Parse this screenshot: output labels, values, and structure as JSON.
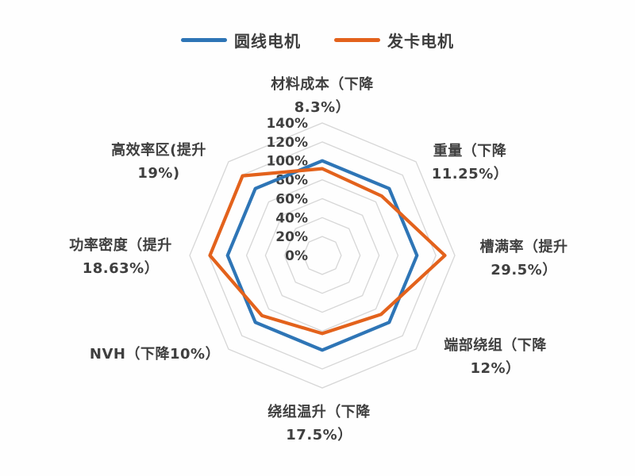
{
  "legend": {
    "items": [
      {
        "label": "圆线电机",
        "color": "#2E75B6"
      },
      {
        "label": "发卡电机",
        "color": "#E3621C"
      }
    ]
  },
  "chart_data": {
    "type": "radar",
    "categories": [
      "材料成本（下降 8.3%）",
      "重量（下降 11.25%）",
      "槽满率（提升 29.5%）",
      "端部绕组（下降 12%）",
      "绕组温升（下降 17.5%）",
      "NVH（下降10%）",
      "功率密度（提升 18.63%）",
      "高效率区(提升 19%)"
    ],
    "axis_label_lines": [
      [
        "材料成本（下降",
        "8.3%）"
      ],
      [
        "重量（下降",
        "11.25%）"
      ],
      [
        "槽满率（提升",
        "29.5%）"
      ],
      [
        "端部绕组（下降",
        "12%）"
      ],
      [
        "绕组温升（下降",
        "17.5%）"
      ],
      [
        "NVH（下降10%）"
      ],
      [
        "功率密度（提升",
        "18.63%）"
      ],
      [
        "高效率区(提升",
        "19%)"
      ]
    ],
    "series": [
      {
        "name": "圆线电机",
        "color": "#2E75B6",
        "values": [
          100,
          100,
          100,
          100,
          100,
          100,
          100,
          100
        ]
      },
      {
        "name": "发卡电机",
        "color": "#E3621C",
        "values": [
          91.7,
          88.75,
          129.5,
          88,
          82.5,
          90,
          118.63,
          119
        ]
      }
    ],
    "rlim": [
      0,
      140
    ],
    "tick_step": 20,
    "tick_labels": [
      "0%",
      "20%",
      "40%",
      "60%",
      "80%",
      "100%",
      "120%",
      "140%"
    ],
    "grid": "concentric-octagons",
    "grid_color": "#d6d6d6",
    "legend_position": "top"
  }
}
